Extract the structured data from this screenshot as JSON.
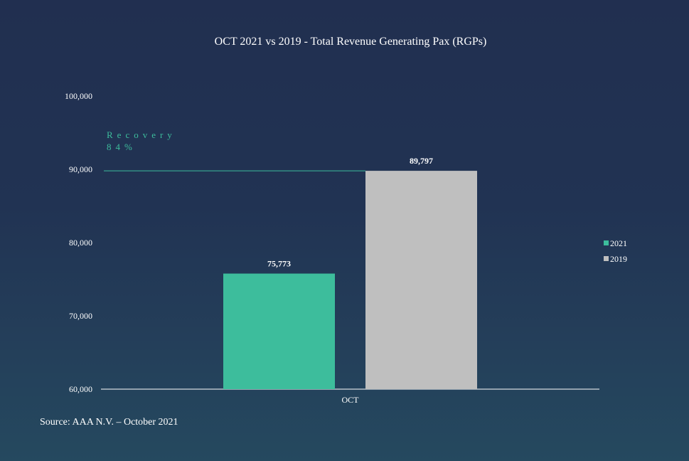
{
  "chart_data": {
    "type": "bar",
    "title": "OCT 2021 vs 2019 - Total Revenue Generating Pax (RGPs)",
    "categories": [
      "OCT"
    ],
    "series": [
      {
        "name": "2021",
        "values": [
          75773
        ],
        "label": "75,773",
        "color": "#3dbd9c"
      },
      {
        "name": "2019",
        "values": [
          89797
        ],
        "label": "89,797",
        "color": "#bfbfbf"
      }
    ],
    "ylim": [
      60000,
      100000
    ],
    "yticks": [
      {
        "value": 60000,
        "label": "60,000"
      },
      {
        "value": 70000,
        "label": "70,000"
      },
      {
        "value": 80000,
        "label": "80,000"
      },
      {
        "value": 90000,
        "label": "90,000"
      },
      {
        "value": 100000,
        "label": "100,000"
      }
    ],
    "grid": false,
    "legend_position": "right",
    "annotation": {
      "line1": "Recovery",
      "line2": "84%",
      "reference_value": 89797,
      "color": "#3dbd9c"
    }
  },
  "source": "Source: AAA N.V. – October 2021"
}
